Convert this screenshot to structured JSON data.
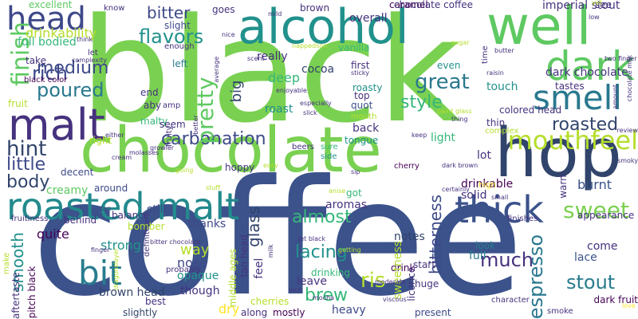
{
  "words": [
    {
      "text": "black",
      "color": "#7ad151"
    },
    {
      "text": "coffee",
      "color": "#3b528b"
    },
    {
      "text": "chocolate",
      "color": "#7ad151"
    },
    {
      "text": "alcohol",
      "color": "#21918c"
    },
    {
      "text": "well",
      "color": "#5ec962"
    },
    {
      "text": "hop",
      "color": "#31446b"
    },
    {
      "text": "dark",
      "color": "#5ec962"
    },
    {
      "text": "head",
      "color": "#3e4989"
    },
    {
      "text": "smell",
      "color": "#2a788e"
    },
    {
      "text": "malt",
      "color": "#46327e"
    },
    {
      "text": "roasted malt",
      "color": "#238a8d"
    },
    {
      "text": "bit",
      "color": "#287c8e"
    },
    {
      "text": "thick",
      "color": "#3b528b"
    },
    {
      "text": "finish",
      "color": "#5ec962"
    },
    {
      "text": "mouthfeel",
      "color": "#b5de2b"
    },
    {
      "text": "carbonation",
      "color": "#3e4989"
    },
    {
      "text": "pretty",
      "color": "#5ec962"
    },
    {
      "text": "flavors",
      "color": "#21918c"
    },
    {
      "text": "bitter",
      "color": "#3e4989"
    },
    {
      "text": "rich",
      "color": "#3e4989"
    },
    {
      "text": "poured",
      "color": "#2a788e"
    },
    {
      "text": "medium",
      "color": "#3e4989"
    },
    {
      "text": "great",
      "color": "#2a788e"
    },
    {
      "text": "style",
      "color": "#35b779"
    },
    {
      "text": "roasted",
      "color": "#31446b"
    },
    {
      "text": "hint",
      "color": "#31446b"
    },
    {
      "text": "little",
      "color": "#3e4989"
    },
    {
      "text": "body",
      "color": "#31446b"
    },
    {
      "text": "almost",
      "color": "#35b779"
    },
    {
      "text": "sweet",
      "color": "#7ad151"
    },
    {
      "text": "lacing",
      "color": "#21918c"
    },
    {
      "text": "ris",
      "color": "#b5de2b"
    },
    {
      "text": "brew",
      "color": "#35b779"
    },
    {
      "text": "smooth",
      "color": "#21918c"
    },
    {
      "text": "glass",
      "color": "#31446b"
    },
    {
      "text": "much",
      "color": "#46327e"
    },
    {
      "text": "stout",
      "color": "#287c8e"
    },
    {
      "text": "espresso",
      "color": "#2a788e"
    },
    {
      "text": "bitterness",
      "color": "#3e4989"
    },
    {
      "text": "big",
      "color": "#31446b"
    },
    {
      "text": "strong",
      "color": "#21918c"
    },
    {
      "text": "drinkability",
      "color": "#b5de2b"
    },
    {
      "text": "full bodied",
      "color": "#35b779"
    },
    {
      "text": "excellent",
      "color": "#5ec962"
    },
    {
      "text": "take",
      "color": "#46327e"
    },
    {
      "text": "let",
      "color": "#46327e"
    },
    {
      "text": "complexity",
      "color": "#46327e"
    },
    {
      "text": "fruit",
      "color": "#b5de2b"
    },
    {
      "text": "black color",
      "color": "#440154"
    },
    {
      "text": "think",
      "color": "#46327e"
    },
    {
      "text": "right",
      "color": "#b5de2b"
    },
    {
      "text": "decent",
      "color": "#3e4989"
    },
    {
      "text": "around",
      "color": "#3e4989"
    },
    {
      "text": "creamy",
      "color": "#5ec962"
    },
    {
      "text": "balance",
      "color": "#46327e"
    },
    {
      "text": "still",
      "color": "#3e4989"
    },
    {
      "text": "quite",
      "color": "#440154"
    },
    {
      "text": "thanks",
      "color": "#3e4989"
    },
    {
      "text": "nose",
      "color": "#3e4989"
    },
    {
      "text": "way",
      "color": "#b5de2b"
    },
    {
      "text": "brown head",
      "color": "#31446b"
    },
    {
      "text": "best",
      "color": "#46327e"
    },
    {
      "text": "slightly",
      "color": "#31446b"
    },
    {
      "text": "opaque",
      "color": "#21918c"
    },
    {
      "text": "though",
      "color": "#46327e"
    },
    {
      "text": "dry",
      "color": "#fde725"
    },
    {
      "text": "along",
      "color": "#46327e"
    },
    {
      "text": "cherries",
      "color": "#b5de2b"
    },
    {
      "text": "mostly",
      "color": "#440154"
    },
    {
      "text": "heavy",
      "color": "#3e4989"
    },
    {
      "text": "present",
      "color": "#3e4989"
    },
    {
      "text": "deep",
      "color": "#35b779"
    },
    {
      "text": "really",
      "color": "#46327e"
    },
    {
      "text": "roast",
      "color": "#21918c"
    },
    {
      "text": "cocoa",
      "color": "#31446b"
    },
    {
      "text": "beers",
      "color": "#46327e"
    },
    {
      "text": "sure",
      "color": "#35b779"
    },
    {
      "text": "side",
      "color": "#21918c"
    },
    {
      "text": "tongue",
      "color": "#21918c"
    },
    {
      "text": "light",
      "color": "#35b779"
    },
    {
      "text": "cherry",
      "color": "#440154"
    },
    {
      "text": "lot",
      "color": "#46327e"
    },
    {
      "text": "drinkable",
      "color": "#440154"
    },
    {
      "text": "burnt",
      "color": "#3b528b"
    },
    {
      "text": "appearance",
      "color": "#46327e"
    },
    {
      "text": "high",
      "color": "#fde725"
    },
    {
      "text": "got",
      "color": "#35b779"
    },
    {
      "text": "aromas",
      "color": "#46327e"
    },
    {
      "text": "notes",
      "color": "#31446b"
    },
    {
      "text": "start",
      "color": "#46327e"
    },
    {
      "text": "drink",
      "color": "#440154"
    },
    {
      "text": "huge",
      "color": "#46327e"
    },
    {
      "text": "look",
      "color": "#287c8e"
    },
    {
      "text": "full",
      "color": "#287c8e"
    },
    {
      "text": "lace",
      "color": "#3b528b"
    },
    {
      "text": "come",
      "color": "#46327e"
    },
    {
      "text": "dark fruit",
      "color": "#440154"
    },
    {
      "text": "thin",
      "color": "#46327e"
    },
    {
      "text": "complex",
      "color": "#b5de2b"
    },
    {
      "text": "touch",
      "color": "#21918c"
    },
    {
      "text": "tastes",
      "color": "#46327e"
    },
    {
      "text": "dark chocolate",
      "color": "#46327e"
    },
    {
      "text": "imperial stout",
      "color": "#46327e"
    },
    {
      "text": "overall",
      "color": "#46327e"
    },
    {
      "text": "caramel",
      "color": "#440154"
    },
    {
      "text": "vanilla",
      "color": "#35b779"
    },
    {
      "text": "first",
      "color": "#46327e"
    },
    {
      "text": "even",
      "color": "#21918c"
    },
    {
      "text": "quot",
      "color": "#3b528b"
    },
    {
      "text": "top",
      "color": "#46327e"
    },
    {
      "text": "back",
      "color": "#46327e"
    },
    {
      "text": "mouth",
      "color": "#b5de2b"
    },
    {
      "text": "roasty",
      "color": "#21918c"
    },
    {
      "text": "chocolate coffee",
      "color": "#46327e"
    },
    {
      "text": "brown",
      "color": "#46327e"
    },
    {
      "text": "goes",
      "color": "#46327e"
    },
    {
      "text": "know",
      "color": "#46327e"
    },
    {
      "text": "slight",
      "color": "#3e4989"
    },
    {
      "text": "enough",
      "color": "#46327e"
    },
    {
      "text": "end",
      "color": "#46327e"
    },
    {
      "text": "aby",
      "color": "#46327e"
    },
    {
      "text": "amp",
      "color": "#46327e"
    },
    {
      "text": "malty",
      "color": "#35b779"
    },
    {
      "text": "left",
      "color": "#287c8e"
    },
    {
      "text": "fruity",
      "color": "#46327e"
    },
    {
      "text": "seem",
      "color": "#46327e"
    },
    {
      "text": "hoppy",
      "color": "#46327e"
    },
    {
      "text": "warm",
      "color": "#46327e"
    },
    {
      "text": "solid",
      "color": "#46327e"
    },
    {
      "text": "colored head",
      "color": "#46327e"
    },
    {
      "text": "tan head",
      "color": "#46327e"
    },
    {
      "text": "leave",
      "color": "#46327e"
    },
    {
      "text": "drinking",
      "color": "#35b779"
    },
    {
      "text": "sweetness",
      "color": "#b5de2b"
    },
    {
      "text": "licorice",
      "color": "#46327e"
    },
    {
      "text": "feel",
      "color": "#46327e"
    },
    {
      "text": "middle ages",
      "color": "#b5de2b"
    },
    {
      "text": "probably",
      "color": "#46327e"
    },
    {
      "text": "definitely",
      "color": "#46327e"
    },
    {
      "text": "bomber",
      "color": "#b5de2b"
    },
    {
      "text": "behind",
      "color": "#46327e"
    },
    {
      "text": "pitch black",
      "color": "#440154"
    },
    {
      "text": "aftertaste",
      "color": "#46327e"
    },
    {
      "text": "make",
      "color": "#b5de2b"
    },
    {
      "text": "fruitiness",
      "color": "#46327e"
    },
    {
      "text": "finishes",
      "color": "#46327e"
    },
    {
      "text": "character",
      "color": "#46327e"
    },
    {
      "text": "moderate",
      "color": "#46327e"
    },
    {
      "text": "mild",
      "color": "#46327e"
    },
    {
      "text": "jet black",
      "color": "#46327e"
    },
    {
      "text": "smoke",
      "color": "#46327e"
    },
    {
      "text": "love",
      "color": "#fde725"
    },
    {
      "text": "see",
      "color": "#46327e"
    },
    {
      "text": "yet",
      "color": "#b5de2b"
    },
    {
      "text": "low",
      "color": "#46327e"
    },
    {
      "text": "time",
      "color": "#46327e"
    },
    {
      "text": "butter",
      "color": "#46327e"
    },
    {
      "text": "raisin",
      "color": "#46327e"
    },
    {
      "text": "sugar",
      "color": "#b5de2b"
    },
    {
      "text": "two finger",
      "color": "#46327e"
    },
    {
      "text": "chocolate milk",
      "color": "#46327e"
    },
    {
      "text": "amount",
      "color": "#46327e"
    },
    {
      "text": "review",
      "color": "#46327e"
    },
    {
      "text": "smoky",
      "color": "#46327e"
    },
    {
      "text": "nice",
      "color": "#46327e"
    },
    {
      "text": "scent",
      "color": "#46327e"
    },
    {
      "text": "nappedson",
      "color": "#b5de2b"
    },
    {
      "text": "enjoyable",
      "color": "#46327e"
    },
    {
      "text": "sticky",
      "color": "#46327e"
    },
    {
      "text": "especially",
      "color": "#46327e"
    },
    {
      "text": "slick",
      "color": "#46327e"
    },
    {
      "text": "paint glass",
      "color": "#b5de2b"
    },
    {
      "text": "thing",
      "color": "#46327e"
    },
    {
      "text": "keep",
      "color": "#46327e"
    },
    {
      "text": "molasses",
      "color": "#46327e"
    },
    {
      "text": "growler",
      "color": "#46327e"
    },
    {
      "text": "better",
      "color": "#46327e"
    },
    {
      "text": "either",
      "color": "#46327e"
    },
    {
      "text": "cream",
      "color": "#46327e"
    },
    {
      "text": "tan",
      "color": "#46327e"
    },
    {
      "text": "stuff",
      "color": "#b5de2b"
    },
    {
      "text": "going",
      "color": "#b5de2b"
    },
    {
      "text": "easy",
      "color": "#b5de2b"
    },
    {
      "text": "dark brown",
      "color": "#46327e"
    },
    {
      "text": "sip",
      "color": "#46327e"
    },
    {
      "text": "anise",
      "color": "#b5de2b"
    },
    {
      "text": "certainly",
      "color": "#46327e"
    },
    {
      "text": "small",
      "color": "#46327e"
    },
    {
      "text": "getting",
      "color": "#b5de2b"
    },
    {
      "text": "inch",
      "color": "#46327e"
    },
    {
      "text": "mocha",
      "color": "#46327e"
    },
    {
      "text": "viscous",
      "color": "#46327e"
    },
    {
      "text": "bitter chocolate",
      "color": "#46327e"
    },
    {
      "text": "milk",
      "color": "#46327e"
    },
    {
      "text": "finger",
      "color": "#46327e"
    },
    {
      "text": "dragonslayer",
      "color": "#b5de2b"
    },
    {
      "text": "average",
      "color": "#46327e"
    }
  ]
}
